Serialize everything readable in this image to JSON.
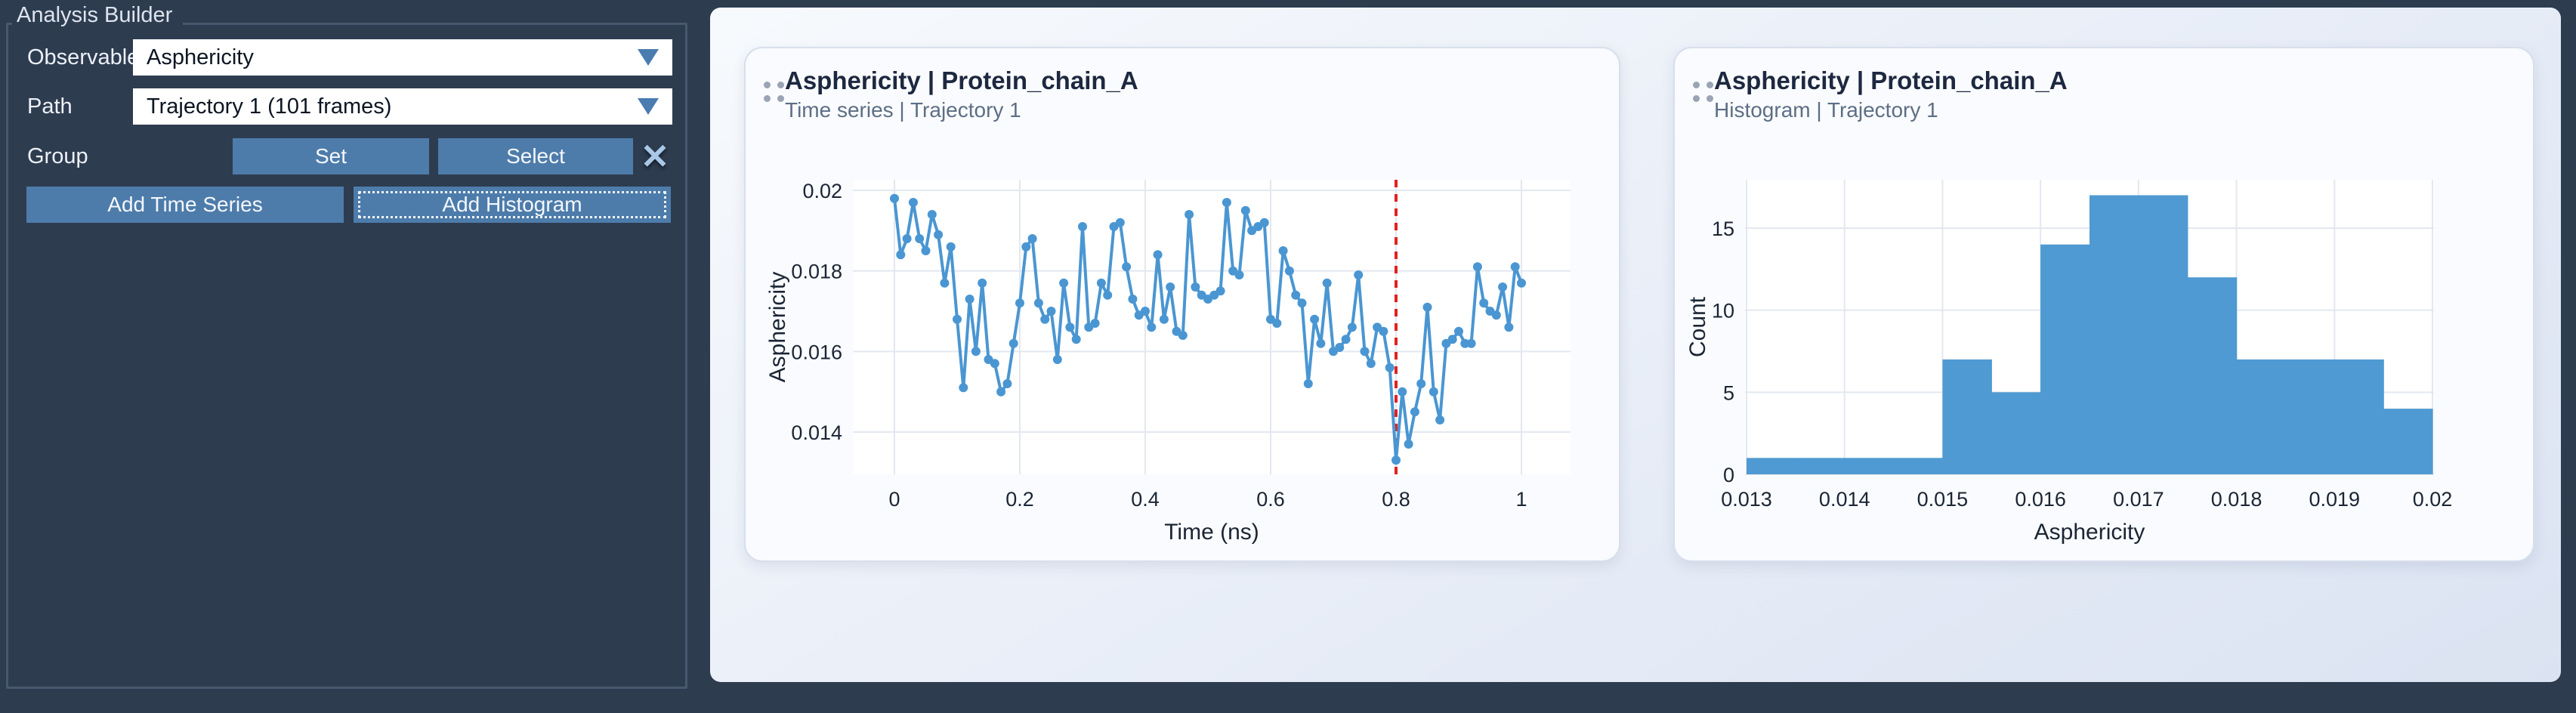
{
  "panel": {
    "title": "Analysis Builder",
    "observable_label": "Observable",
    "observable_value": "Asphericity",
    "path_label": "Path",
    "path_value": "Trajectory 1 (101 frames)",
    "group_label": "Group",
    "set_button": "Set",
    "select_button": "Select",
    "close_icon": "✕",
    "add_time_series_button": "Add Time Series",
    "add_histogram_button": "Add Histogram"
  },
  "cards": [
    {
      "title": "Asphericity | Protein_chain_A",
      "subtitle": "Time series | Trajectory 1"
    },
    {
      "title": "Asphericity | Protein_chain_A",
      "subtitle": "Histogram | Trajectory 1"
    }
  ],
  "colors": {
    "panel_bg": "#2e3c50",
    "panel_border": "#47586f",
    "button_blue": "#4d7cab",
    "dropdown_caret": "#4a7cb0",
    "close_icon_blue": "#a9c7e6",
    "card_bg": "#f9fbfe",
    "card_border": "#d8dfec",
    "grid": "#e3e7ef",
    "series_blue": "#4a96d2",
    "bar_blue": "#4f9ad2",
    "vline_red": "#df2222",
    "text_dark": "#1b2534",
    "subtitle_gray": "#5d6e85"
  },
  "chart_data": [
    {
      "type": "line",
      "title": "Asphericity | Protein_chain_A",
      "subtitle": "Time series | Trajectory 1",
      "xlabel": "Time (ns)",
      "ylabel": "Asphericity",
      "xlim": [
        -0.066,
        1.078
      ],
      "ylim": [
        0.0129,
        0.0203
      ],
      "grid": true,
      "x_tick_values": [
        0,
        0.2,
        0.4,
        0.6,
        0.8,
        1
      ],
      "x_tick_labels": [
        "0",
        "0.2",
        "0.4",
        "0.6",
        "0.8",
        "1"
      ],
      "y_tick_values": [
        0.014,
        0.016,
        0.018,
        0.02
      ],
      "y_tick_labels": [
        "0.014",
        "0.016",
        "0.018",
        "0.02"
      ],
      "vline": {
        "x": 0.8,
        "color": "#df2222",
        "style": "dashed"
      },
      "marker": true,
      "x_start": 0,
      "x_step": 0.01,
      "values": [
        0.0198,
        0.0184,
        0.0188,
        0.0197,
        0.0188,
        0.0185,
        0.0194,
        0.0189,
        0.0177,
        0.0186,
        0.0168,
        0.0151,
        0.0173,
        0.016,
        0.0177,
        0.0158,
        0.0157,
        0.015,
        0.0152,
        0.0162,
        0.0172,
        0.0186,
        0.0188,
        0.0172,
        0.0168,
        0.017,
        0.0158,
        0.0177,
        0.0166,
        0.0163,
        0.0191,
        0.0166,
        0.0167,
        0.0177,
        0.0174,
        0.0191,
        0.0192,
        0.0181,
        0.0173,
        0.0169,
        0.017,
        0.0166,
        0.0184,
        0.0168,
        0.0176,
        0.0165,
        0.0164,
        0.0194,
        0.0176,
        0.0174,
        0.0173,
        0.0174,
        0.0175,
        0.0197,
        0.018,
        0.0179,
        0.0195,
        0.019,
        0.0191,
        0.0192,
        0.0168,
        0.0167,
        0.0185,
        0.018,
        0.0174,
        0.0172,
        0.0152,
        0.0168,
        0.0162,
        0.0177,
        0.016,
        0.0161,
        0.0163,
        0.0166,
        0.0179,
        0.016,
        0.0157,
        0.0166,
        0.0165,
        0.0156,
        0.0133,
        0.015,
        0.0137,
        0.0145,
        0.0152,
        0.0171,
        0.015,
        0.0143,
        0.0162,
        0.0163,
        0.0165,
        0.0162,
        0.0162,
        0.0181,
        0.0172,
        0.017,
        0.0169,
        0.0176,
        0.0166,
        0.0181,
        0.0177
      ]
    },
    {
      "type": "bar",
      "title": "Asphericity | Protein_chain_A",
      "subtitle": "Histogram | Trajectory 1",
      "xlabel": "Asphericity",
      "ylabel": "Count",
      "xlim": [
        0.013,
        0.02
      ],
      "ylim": [
        0,
        17.9
      ],
      "grid": true,
      "bin_start": 0.013,
      "bin_width": 0.0005,
      "counts": [
        1,
        1,
        1,
        1,
        7,
        5,
        14,
        17,
        17,
        12,
        7,
        7,
        7,
        4
      ],
      "x_tick_values": [
        0.013,
        0.014,
        0.015,
        0.016,
        0.017,
        0.018,
        0.019,
        0.02
      ],
      "x_tick_labels": [
        "0.013",
        "0.014",
        "0.015",
        "0.016",
        "0.017",
        "0.018",
        "0.019",
        "0.02"
      ],
      "y_tick_values": [
        0,
        5,
        10,
        15
      ],
      "y_tick_labels": [
        "0",
        "5",
        "10",
        "15"
      ]
    }
  ]
}
